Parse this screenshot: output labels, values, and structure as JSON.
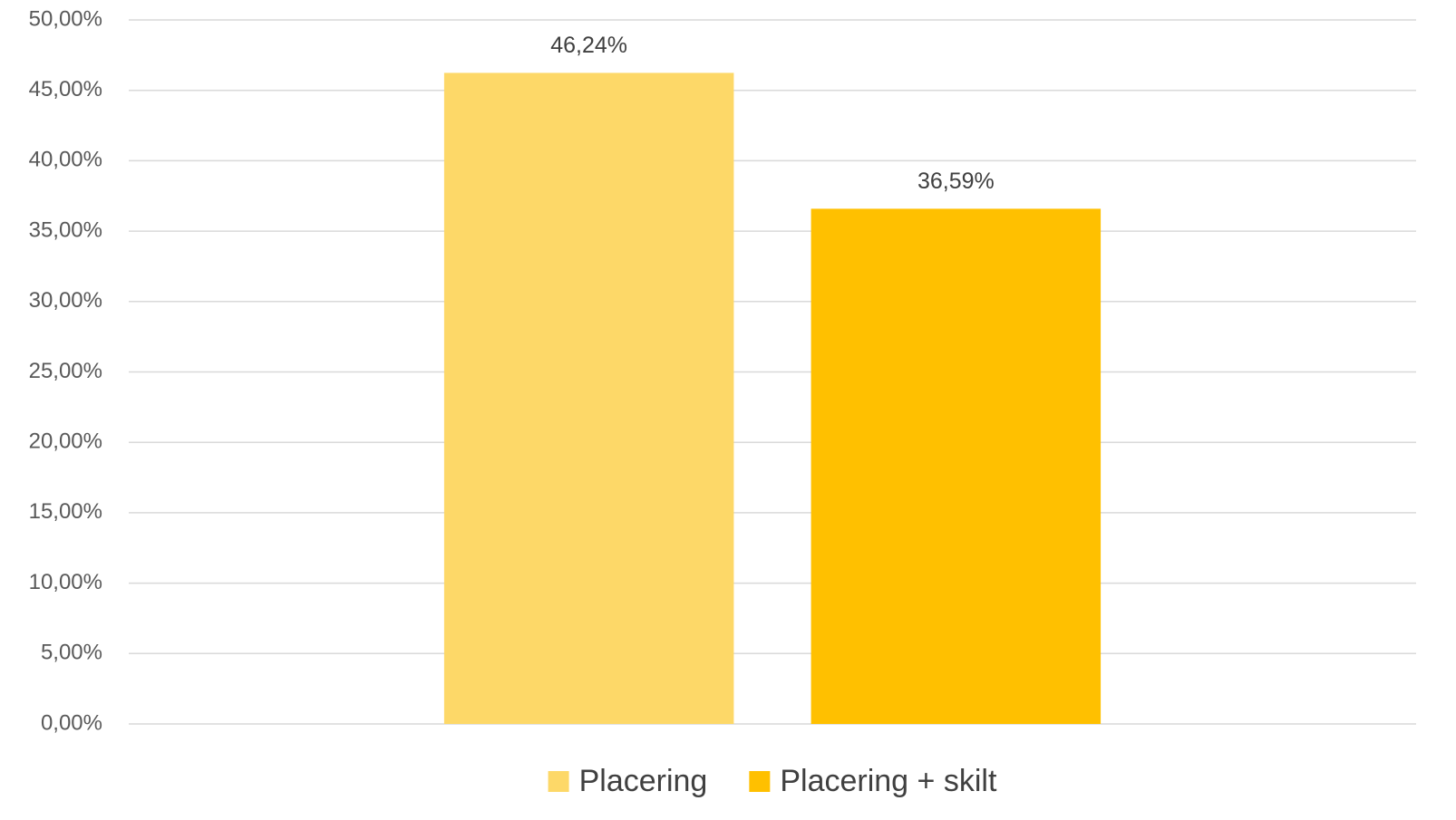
{
  "chart_data": {
    "type": "bar",
    "categories": [
      null
    ],
    "series": [
      {
        "name": "Placering",
        "color": "#fdd868",
        "values": [
          46.24
        ],
        "value_labels": [
          "46,24%"
        ]
      },
      {
        "name": "Placering + skilt",
        "color": "#ffc000",
        "values": [
          36.59
        ],
        "value_labels": [
          "36,59%"
        ]
      }
    ],
    "ylim": [
      0,
      50
    ],
    "yticks": [
      {
        "value": 0,
        "label": "0,00%"
      },
      {
        "value": 5,
        "label": "5,00%"
      },
      {
        "value": 10,
        "label": "10,00%"
      },
      {
        "value": 15,
        "label": "15,00%"
      },
      {
        "value": 20,
        "label": "20,00%"
      },
      {
        "value": 25,
        "label": "25,00%"
      },
      {
        "value": 30,
        "label": "30,00%"
      },
      {
        "value": 35,
        "label": "35,00%"
      },
      {
        "value": 40,
        "label": "40,00%"
      },
      {
        "value": 45,
        "label": "45,00%"
      },
      {
        "value": 50,
        "label": "50,00%"
      }
    ],
    "grid": true,
    "legend": "bottom"
  }
}
